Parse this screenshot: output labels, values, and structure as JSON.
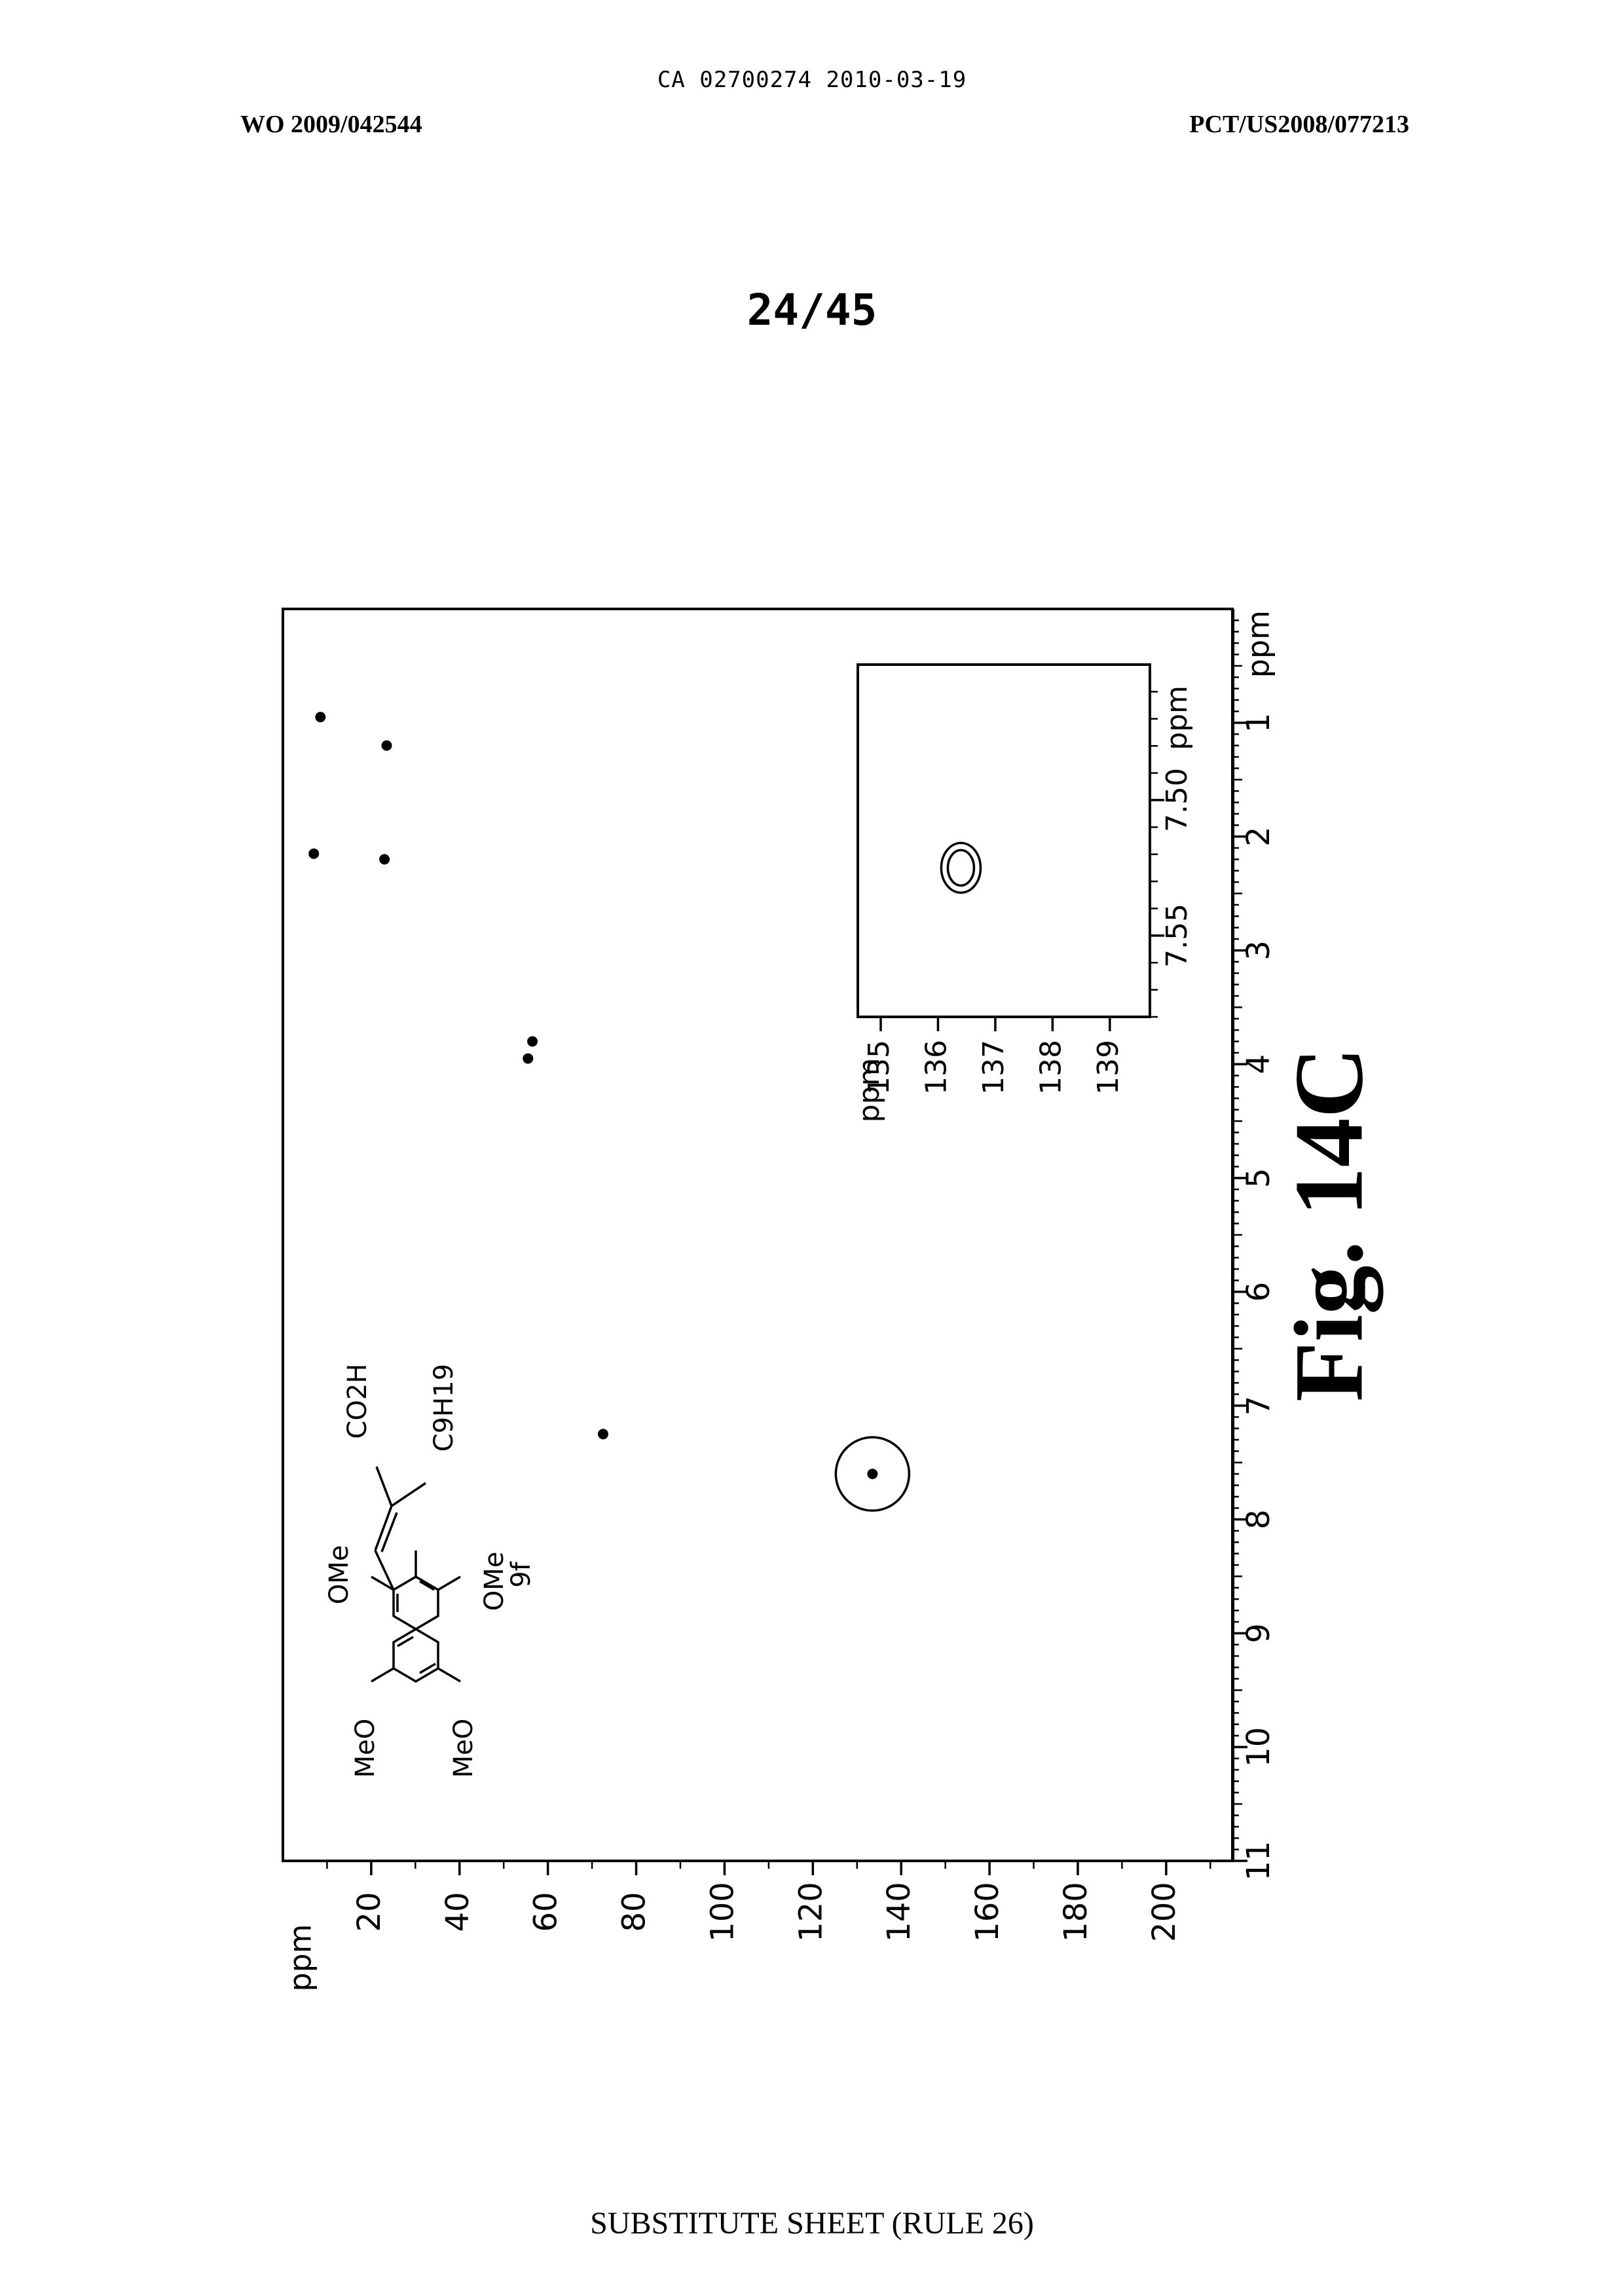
{
  "header": {
    "document_id": "CA 02700274 2010-03-19",
    "publication_number": "WO 2009/042544",
    "application_number": "PCT/US2008/077213"
  },
  "sheet_label": "24/45",
  "figure_label": "Fig. 14C",
  "footer": "SUBSTITUTE SHEET (RULE 26)",
  "compound": {
    "substituents": [
      "CO2H",
      "C9H19",
      "OMe",
      "OMe",
      "MeO",
      "MeO"
    ],
    "label": "9f"
  },
  "chart_data": [
    {
      "type": "scatter",
      "title": "",
      "x_axis_label": "ppm",
      "y_axis_label": "ppm",
      "x_ticks": [
        "1",
        "2",
        "3",
        "4",
        "5",
        "6",
        "7",
        "8",
        "9",
        "10",
        "11"
      ],
      "y_ticks": [
        "20",
        "40",
        "60",
        "80",
        "100",
        "120",
        "140",
        "160",
        "180",
        "200"
      ],
      "xlim": [
        11,
        0
      ],
      "ylim": [
        0,
        215
      ],
      "grid": false,
      "points": [
        {
          "x": 0.95,
          "y": 8.5,
          "circled": false
        },
        {
          "x": 2.15,
          "y": 7.0,
          "circled": false
        },
        {
          "x": 1.2,
          "y": 23.5,
          "circled": false
        },
        {
          "x": 2.2,
          "y": 23.0,
          "circled": false
        },
        {
          "x": 3.8,
          "y": 56.5,
          "circled": false
        },
        {
          "x": 3.95,
          "y": 55.5,
          "circled": false
        },
        {
          "x": 7.25,
          "y": 72.5,
          "circled": false
        },
        {
          "x": 7.6,
          "y": 133.5,
          "circled": true
        }
      ]
    },
    {
      "type": "scatter",
      "title": "",
      "x_axis_label": "ppm",
      "y_axis_label": "ppm",
      "x_ticks": [
        "7.50",
        "7.55"
      ],
      "y_ticks": [
        "135",
        "136",
        "137",
        "138",
        "139"
      ],
      "xlim": [
        7.58,
        7.45
      ],
      "ylim": [
        134.6,
        139.7
      ],
      "points": [
        {
          "x": 7.525,
          "y": 136.4,
          "contour": true
        }
      ]
    }
  ]
}
